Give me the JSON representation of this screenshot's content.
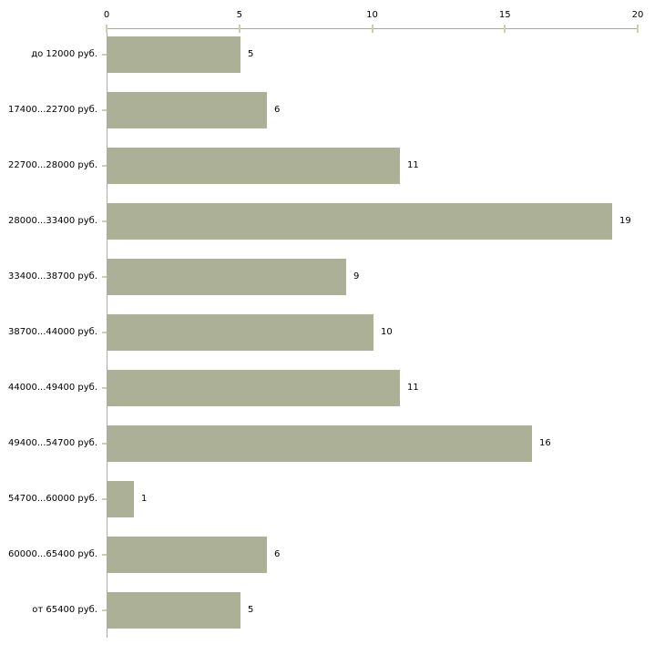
{
  "chart_data": {
    "type": "bar",
    "orientation": "horizontal",
    "title": "",
    "xlabel": "",
    "ylabel": "",
    "categories": [
      "до 12000 руб.",
      "17400...22700 руб.",
      "22700...28000 руб.",
      "28000...33400 руб.",
      "33400...38700 руб.",
      "38700...44000 руб.",
      "44000...49400 руб.",
      "49400...54700 руб.",
      "54700...60000 руб.",
      "60000...65400 руб.",
      "от 65400 руб."
    ],
    "values": [
      5,
      6,
      11,
      19,
      9,
      10,
      11,
      16,
      1,
      6,
      5
    ],
    "x_ticks": [
      0,
      5,
      10,
      15,
      20
    ],
    "xlim": [
      0,
      20
    ],
    "grid": false,
    "legend": false,
    "value_labels_shown": true,
    "axis_position": "top-left",
    "colors": {
      "bar_fill": "#abb096",
      "axis_line": "#aaaaa2",
      "tick_mark": "#cdd0a5",
      "text": "#000000",
      "background": "#ffffff"
    }
  }
}
